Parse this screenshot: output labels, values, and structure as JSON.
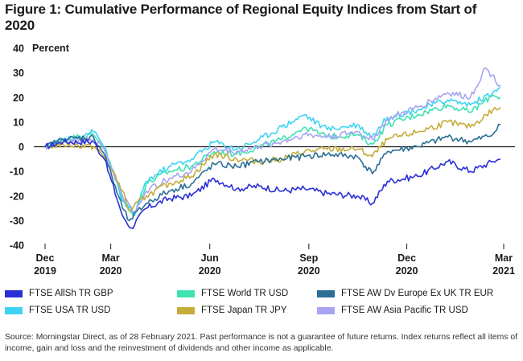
{
  "title": "Figure 1: Cumulative Performance of Regional Equity Indices from Start of 2020",
  "source": "Source: Morningstar Direct, as of 28 February 2021. Past performance is not a guarantee of future returns. Index returns reflect all items of income, gain and loss and the reinvestment of dividends and other income as applicable.",
  "chart_data": {
    "type": "line",
    "title": "Figure 1: Cumulative Performance of Regional Equity Indices from Start of 2020",
    "ylabel": "Percent",
    "ylim": [
      -40,
      40
    ],
    "yticks": [
      -40,
      -30,
      -20,
      -10,
      0,
      10,
      20,
      30,
      40
    ],
    "xlim": [
      "2019-12-31",
      "2021-03-01"
    ],
    "xticks": [
      {
        "date": "2019-12-31",
        "line1": "Dec",
        "line2": "2019"
      },
      {
        "date": "2020-03-01",
        "line1": "Mar",
        "line2": "2020"
      },
      {
        "date": "2020-06-01",
        "line1": "Jun",
        "line2": "2020"
      },
      {
        "date": "2020-09-01",
        "line1": "Sep",
        "line2": "2020"
      },
      {
        "date": "2020-12-01",
        "line1": "Dec",
        "line2": "2020"
      },
      {
        "date": "2021-03-01",
        "line1": "Mar",
        "line2": "2021"
      }
    ],
    "grid": false,
    "legend_position": "bottom",
    "series": [
      {
        "name": "FTSE AllSh TR GBP",
        "color": "#2a2fd6",
        "points": [
          [
            "2019-12-31",
            0
          ],
          [
            "2020-01-17",
            2
          ],
          [
            "2020-02-14",
            2
          ],
          [
            "2020-02-24",
            -5
          ],
          [
            "2020-03-12",
            -28
          ],
          [
            "2020-03-20",
            -33
          ],
          [
            "2020-04-03",
            -25
          ],
          [
            "2020-04-24",
            -21
          ],
          [
            "2020-05-15",
            -20
          ],
          [
            "2020-06-05",
            -13
          ],
          [
            "2020-06-26",
            -17
          ],
          [
            "2020-07-17",
            -16
          ],
          [
            "2020-08-07",
            -18
          ],
          [
            "2020-08-28",
            -17
          ],
          [
            "2020-09-18",
            -19
          ],
          [
            "2020-10-16",
            -20
          ],
          [
            "2020-10-30",
            -23
          ],
          [
            "2020-11-13",
            -14
          ],
          [
            "2020-12-11",
            -12
          ],
          [
            "2021-01-08",
            -6
          ],
          [
            "2021-01-29",
            -10
          ],
          [
            "2021-02-19",
            -6
          ],
          [
            "2021-02-26",
            -5
          ]
        ]
      },
      {
        "name": "FTSE World TR USD",
        "color": "#3de3b0",
        "points": [
          [
            "2019-12-31",
            0
          ],
          [
            "2020-01-17",
            3
          ],
          [
            "2020-02-14",
            5
          ],
          [
            "2020-02-24",
            0
          ],
          [
            "2020-03-12",
            -22
          ],
          [
            "2020-03-23",
            -27
          ],
          [
            "2020-04-03",
            -15
          ],
          [
            "2020-04-24",
            -10
          ],
          [
            "2020-05-15",
            -8
          ],
          [
            "2020-06-05",
            -2
          ],
          [
            "2020-06-26",
            -3
          ],
          [
            "2020-07-17",
            0
          ],
          [
            "2020-08-07",
            3
          ],
          [
            "2020-08-28",
            8
          ],
          [
            "2020-09-18",
            4
          ],
          [
            "2020-10-16",
            5
          ],
          [
            "2020-10-30",
            1
          ],
          [
            "2020-11-13",
            9
          ],
          [
            "2020-12-11",
            13
          ],
          [
            "2021-01-08",
            17
          ],
          [
            "2021-01-29",
            14
          ],
          [
            "2021-02-19",
            21
          ],
          [
            "2021-02-26",
            20
          ]
        ]
      },
      {
        "name": "FTSE AW Dv Europe Ex UK TR EUR",
        "color": "#2b6e96",
        "points": [
          [
            "2019-12-31",
            0
          ],
          [
            "2020-01-17",
            3
          ],
          [
            "2020-02-14",
            4
          ],
          [
            "2020-02-24",
            -3
          ],
          [
            "2020-03-12",
            -25
          ],
          [
            "2020-03-18",
            -30
          ],
          [
            "2020-04-03",
            -23
          ],
          [
            "2020-04-24",
            -18
          ],
          [
            "2020-05-15",
            -15
          ],
          [
            "2020-06-05",
            -7
          ],
          [
            "2020-06-26",
            -8
          ],
          [
            "2020-07-17",
            -6
          ],
          [
            "2020-08-07",
            -5
          ],
          [
            "2020-08-28",
            -4
          ],
          [
            "2020-09-18",
            -3
          ],
          [
            "2020-10-16",
            -4
          ],
          [
            "2020-10-30",
            -11
          ],
          [
            "2020-11-13",
            -2
          ],
          [
            "2020-12-11",
            0
          ],
          [
            "2021-01-08",
            4
          ],
          [
            "2021-01-29",
            2
          ],
          [
            "2021-02-19",
            5
          ],
          [
            "2021-02-26",
            9
          ]
        ]
      },
      {
        "name": "FTSE USA TR USD",
        "color": "#3fd3f3",
        "points": [
          [
            "2019-12-31",
            0
          ],
          [
            "2020-01-17",
            3
          ],
          [
            "2020-02-14",
            6
          ],
          [
            "2020-02-24",
            0
          ],
          [
            "2020-03-12",
            -22
          ],
          [
            "2020-03-23",
            -28
          ],
          [
            "2020-04-03",
            -14
          ],
          [
            "2020-04-24",
            -8
          ],
          [
            "2020-05-15",
            -5
          ],
          [
            "2020-06-05",
            2
          ],
          [
            "2020-06-26",
            -1
          ],
          [
            "2020-07-17",
            3
          ],
          [
            "2020-08-07",
            8
          ],
          [
            "2020-08-28",
            13
          ],
          [
            "2020-09-18",
            7
          ],
          [
            "2020-10-16",
            9
          ],
          [
            "2020-10-30",
            4
          ],
          [
            "2020-11-13",
            12
          ],
          [
            "2020-12-11",
            15
          ],
          [
            "2021-01-08",
            19
          ],
          [
            "2021-01-29",
            17
          ],
          [
            "2021-02-19",
            22
          ],
          [
            "2021-02-26",
            24
          ]
        ]
      },
      {
        "name": "FTSE Japan TR JPY",
        "color": "#c4ad3a",
        "points": [
          [
            "2019-12-31",
            0
          ],
          [
            "2020-01-17",
            1
          ],
          [
            "2020-02-14",
            0
          ],
          [
            "2020-02-24",
            -4
          ],
          [
            "2020-03-12",
            -18
          ],
          [
            "2020-03-18",
            -26
          ],
          [
            "2020-04-03",
            -20
          ],
          [
            "2020-04-24",
            -15
          ],
          [
            "2020-05-15",
            -12
          ],
          [
            "2020-06-05",
            -3
          ],
          [
            "2020-06-26",
            -5
          ],
          [
            "2020-07-17",
            -6
          ],
          [
            "2020-08-07",
            -5
          ],
          [
            "2020-08-28",
            -2
          ],
          [
            "2020-09-18",
            -1
          ],
          [
            "2020-10-16",
            -1
          ],
          [
            "2020-10-30",
            -4
          ],
          [
            "2020-11-13",
            3
          ],
          [
            "2020-12-11",
            6
          ],
          [
            "2021-01-08",
            10
          ],
          [
            "2021-01-29",
            8
          ],
          [
            "2021-02-19",
            15
          ],
          [
            "2021-02-26",
            16
          ]
        ]
      },
      {
        "name": "FTSE AW Asia Pacific TR USD",
        "color": "#a8a4f2",
        "points": [
          [
            "2019-12-31",
            0
          ],
          [
            "2020-01-17",
            2
          ],
          [
            "2020-02-14",
            3
          ],
          [
            "2020-02-24",
            -1
          ],
          [
            "2020-03-12",
            -20
          ],
          [
            "2020-03-23",
            -27
          ],
          [
            "2020-04-03",
            -18
          ],
          [
            "2020-04-24",
            -13
          ],
          [
            "2020-05-15",
            -10
          ],
          [
            "2020-06-05",
            -1
          ],
          [
            "2020-06-26",
            -2
          ],
          [
            "2020-07-17",
            0
          ],
          [
            "2020-08-07",
            2
          ],
          [
            "2020-08-28",
            5
          ],
          [
            "2020-09-18",
            4
          ],
          [
            "2020-10-16",
            6
          ],
          [
            "2020-10-30",
            3
          ],
          [
            "2020-11-13",
            11
          ],
          [
            "2020-12-11",
            16
          ],
          [
            "2021-01-08",
            22
          ],
          [
            "2021-01-29",
            20
          ],
          [
            "2021-02-12",
            32
          ],
          [
            "2021-02-26",
            25
          ]
        ]
      }
    ]
  }
}
